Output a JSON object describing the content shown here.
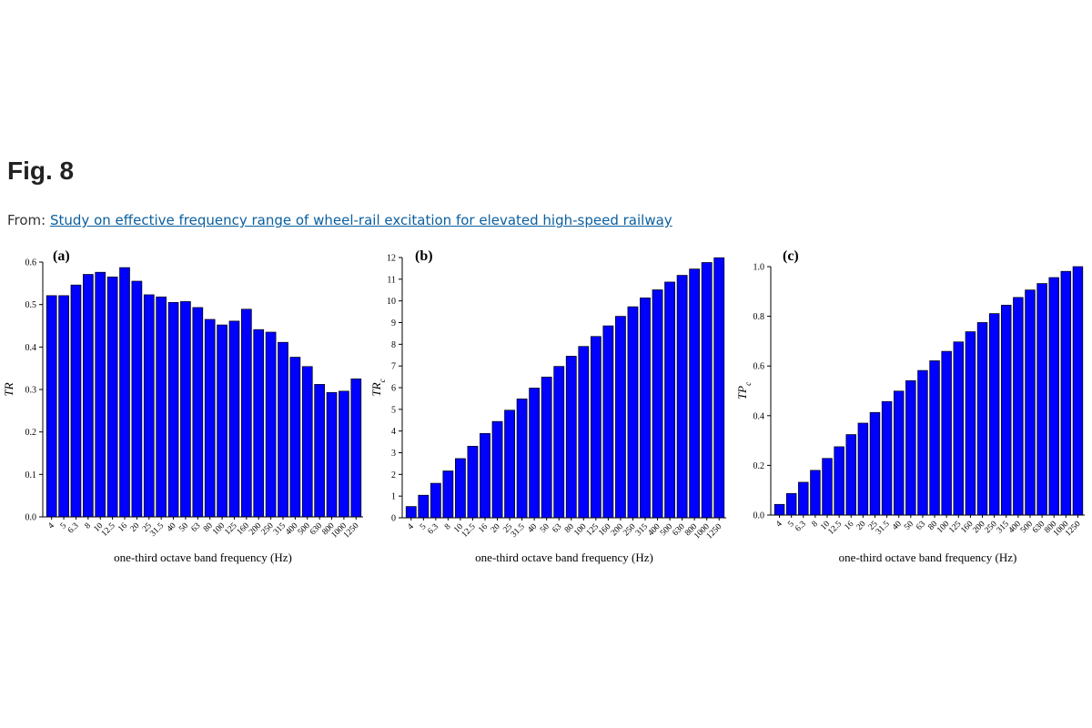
{
  "page": {
    "title": "Fig. 8",
    "from_label": "From:",
    "link_text": "Study on effective frequency range of wheel-rail excitation for elevated high-speed railway"
  },
  "colors": {
    "bar": "#0000ff",
    "bar_edge": "#000000",
    "link": "#0b5fa0"
  },
  "chart_data": [
    {
      "type": "bar",
      "panel": "(a)",
      "ylabel": "TR",
      "xlabel": "one-third octave band frequency (Hz)",
      "ylim": [
        0,
        0.6
      ],
      "yticks": [
        0.0,
        0.1,
        0.2,
        0.3,
        0.4,
        0.5,
        0.6
      ],
      "ytick_labels": [
        "0.0",
        "0.1",
        "0.2",
        "0.3",
        "0.4",
        "0.5",
        "0.6"
      ],
      "categories": [
        "4",
        "5",
        "6.3",
        "8",
        "10",
        "12.5",
        "16",
        "20",
        "25",
        "31.5",
        "40",
        "50",
        "63",
        "80",
        "100",
        "125",
        "160",
        "200",
        "250",
        "315",
        "400",
        "500",
        "630",
        "800",
        "1000",
        "1250"
      ],
      "values": [
        0.521,
        0.521,
        0.546,
        0.571,
        0.576,
        0.565,
        0.587,
        0.555,
        0.523,
        0.518,
        0.505,
        0.507,
        0.493,
        0.465,
        0.452,
        0.461,
        0.489,
        0.441,
        0.435,
        0.411,
        0.376,
        0.354,
        0.312,
        0.293,
        0.296,
        0.325
      ],
      "grid": false
    },
    {
      "type": "bar",
      "panel": "(b)",
      "ylabel": "TR",
      "ylabel_sub": "c",
      "xlabel": "one-third octave band frequency (Hz)",
      "ylim": [
        0,
        12
      ],
      "yticks": [
        0,
        1,
        2,
        3,
        4,
        5,
        6,
        7,
        8,
        9,
        10,
        11,
        12
      ],
      "ytick_labels": [
        "0",
        "1",
        "2",
        "3",
        "4",
        "5",
        "6",
        "7",
        "8",
        "9",
        "10",
        "11",
        "12"
      ],
      "categories": [
        "4",
        "5",
        "6.3",
        "8",
        "10",
        "12.5",
        "16",
        "20",
        "25",
        "31.5",
        "40",
        "50",
        "63",
        "80",
        "100",
        "125",
        "160",
        "200",
        "250",
        "315",
        "400",
        "500",
        "630",
        "800",
        "1000",
        "1250"
      ],
      "values": [
        0.52,
        1.04,
        1.59,
        2.16,
        2.73,
        3.3,
        3.89,
        4.44,
        4.96,
        5.48,
        5.98,
        6.49,
        6.98,
        7.45,
        7.9,
        8.36,
        8.85,
        9.29,
        9.73,
        10.14,
        10.51,
        10.87,
        11.18,
        11.47,
        11.77,
        11.99
      ],
      "grid": false
    },
    {
      "type": "bar",
      "panel": "(c)",
      "ylabel": "TP",
      "ylabel_sub": "c",
      "xlabel": "one-third octave band frequency (Hz)",
      "ylim": [
        0,
        1.0
      ],
      "yticks": [
        0.0,
        0.2,
        0.4,
        0.6,
        0.8,
        1.0
      ],
      "ytick_labels": [
        "0.0",
        "0.2",
        "0.4",
        "0.6",
        "0.8",
        "1.0"
      ],
      "categories": [
        "4",
        "5",
        "6.3",
        "8",
        "10",
        "12.5",
        "16",
        "20",
        "25",
        "31.5",
        "40",
        "50",
        "63",
        "80",
        "100",
        "125",
        "160",
        "200",
        "250",
        "315",
        "400",
        "500",
        "630",
        "800",
        "1000",
        "1250"
      ],
      "values": [
        0.043,
        0.087,
        0.132,
        0.18,
        0.228,
        0.275,
        0.324,
        0.37,
        0.413,
        0.457,
        0.499,
        0.541,
        0.582,
        0.621,
        0.659,
        0.697,
        0.738,
        0.775,
        0.811,
        0.845,
        0.876,
        0.906,
        0.932,
        0.956,
        0.981,
        1.0
      ],
      "grid": false
    }
  ]
}
